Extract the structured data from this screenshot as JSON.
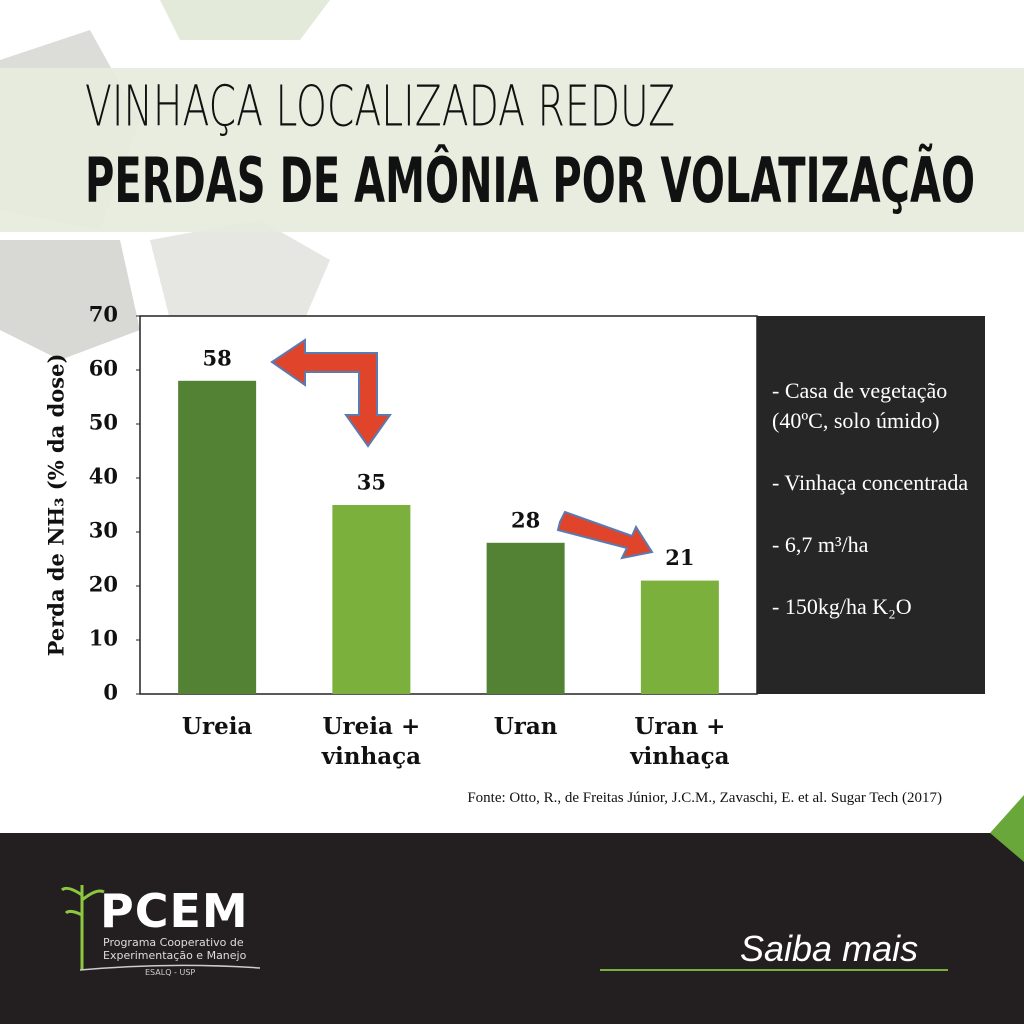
{
  "header": {
    "title_line1": "VINHAÇA LOCALIZADA REDUZ",
    "title_line2": "PERDAS DE AMÔNIA POR VOLATIZAÇÃO"
  },
  "chart_data": {
    "type": "bar",
    "ylabel": "Perda de NH₃ (% da dose)",
    "categories": [
      "Ureia",
      "Ureia + vinhaça",
      "Uran",
      "Uran + vinhaça"
    ],
    "values": [
      58,
      35,
      28,
      21
    ],
    "colors": [
      "#548235",
      "#7cb03c",
      "#548235",
      "#7cb03c"
    ],
    "ylim": [
      0,
      70
    ],
    "yticks": [
      0,
      10,
      20,
      30,
      40,
      50,
      60,
      70
    ],
    "grid": false
  },
  "notes": [
    "- Casa de vegetação (40ºC, solo úmido)",
    "- Vinhaça concentrada",
    "- 6,7 m³/ha",
    "- 150kg/ha K₂O"
  ],
  "source": "Fonte: Otto, R., de Freitas Júnior, J.C.M., Zavaschi, E. et al. Sugar Tech (2017)",
  "footer": {
    "logo": "PCEM",
    "program": "Programa Cooperativo de Experimentação e Manejo",
    "institution": "ESALQ - USP",
    "link": "Saiba mais"
  }
}
